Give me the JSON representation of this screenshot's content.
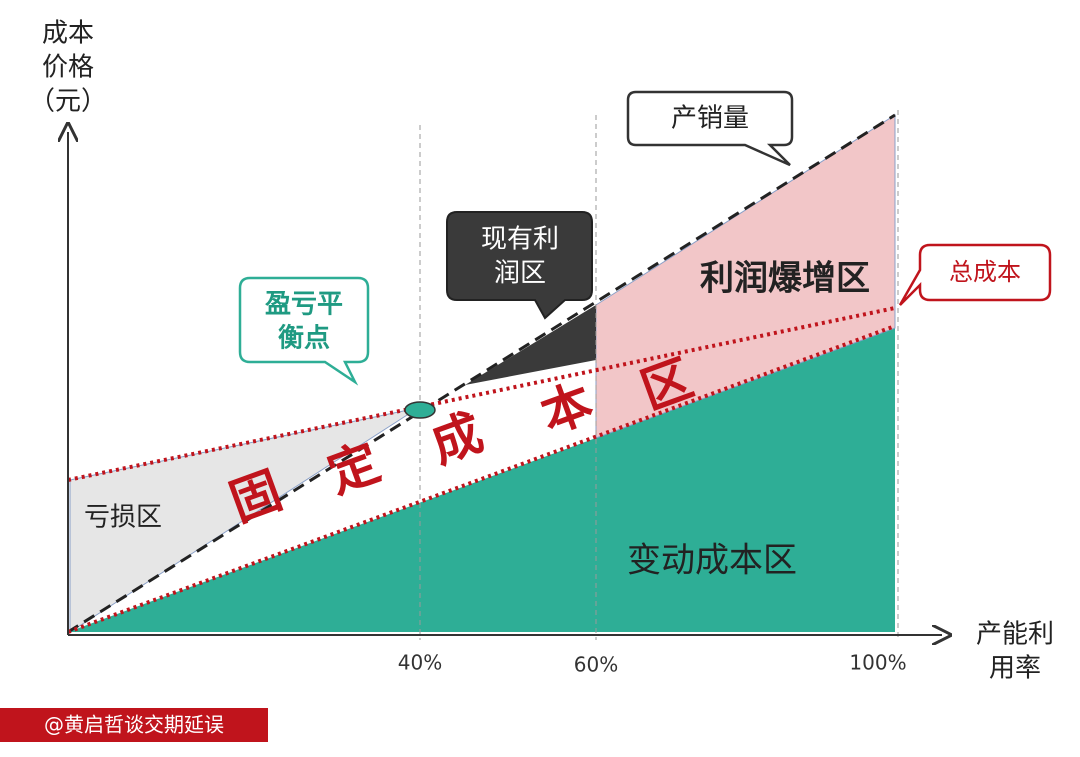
{
  "y_axis": {
    "label_lines": [
      "成本",
      "价格",
      "（元）"
    ]
  },
  "x_axis": {
    "label_lines": [
      "产能利",
      "用率"
    ],
    "ticks": [
      "40%",
      "60%",
      "100%"
    ]
  },
  "callouts": {
    "sales_volume": "产销量",
    "current_profit": [
      "现有利",
      "润区"
    ],
    "break_even": [
      "盈亏平",
      "衡点"
    ],
    "total_cost": "总成本"
  },
  "regions": {
    "profit_boom": "利润爆增区",
    "fixed_cost": [
      "固",
      "定",
      "成",
      "本",
      "区"
    ],
    "loss": "亏损区",
    "variable_cost": "变动成本区"
  },
  "watermark": "@黄启哲谈交期延误"
}
